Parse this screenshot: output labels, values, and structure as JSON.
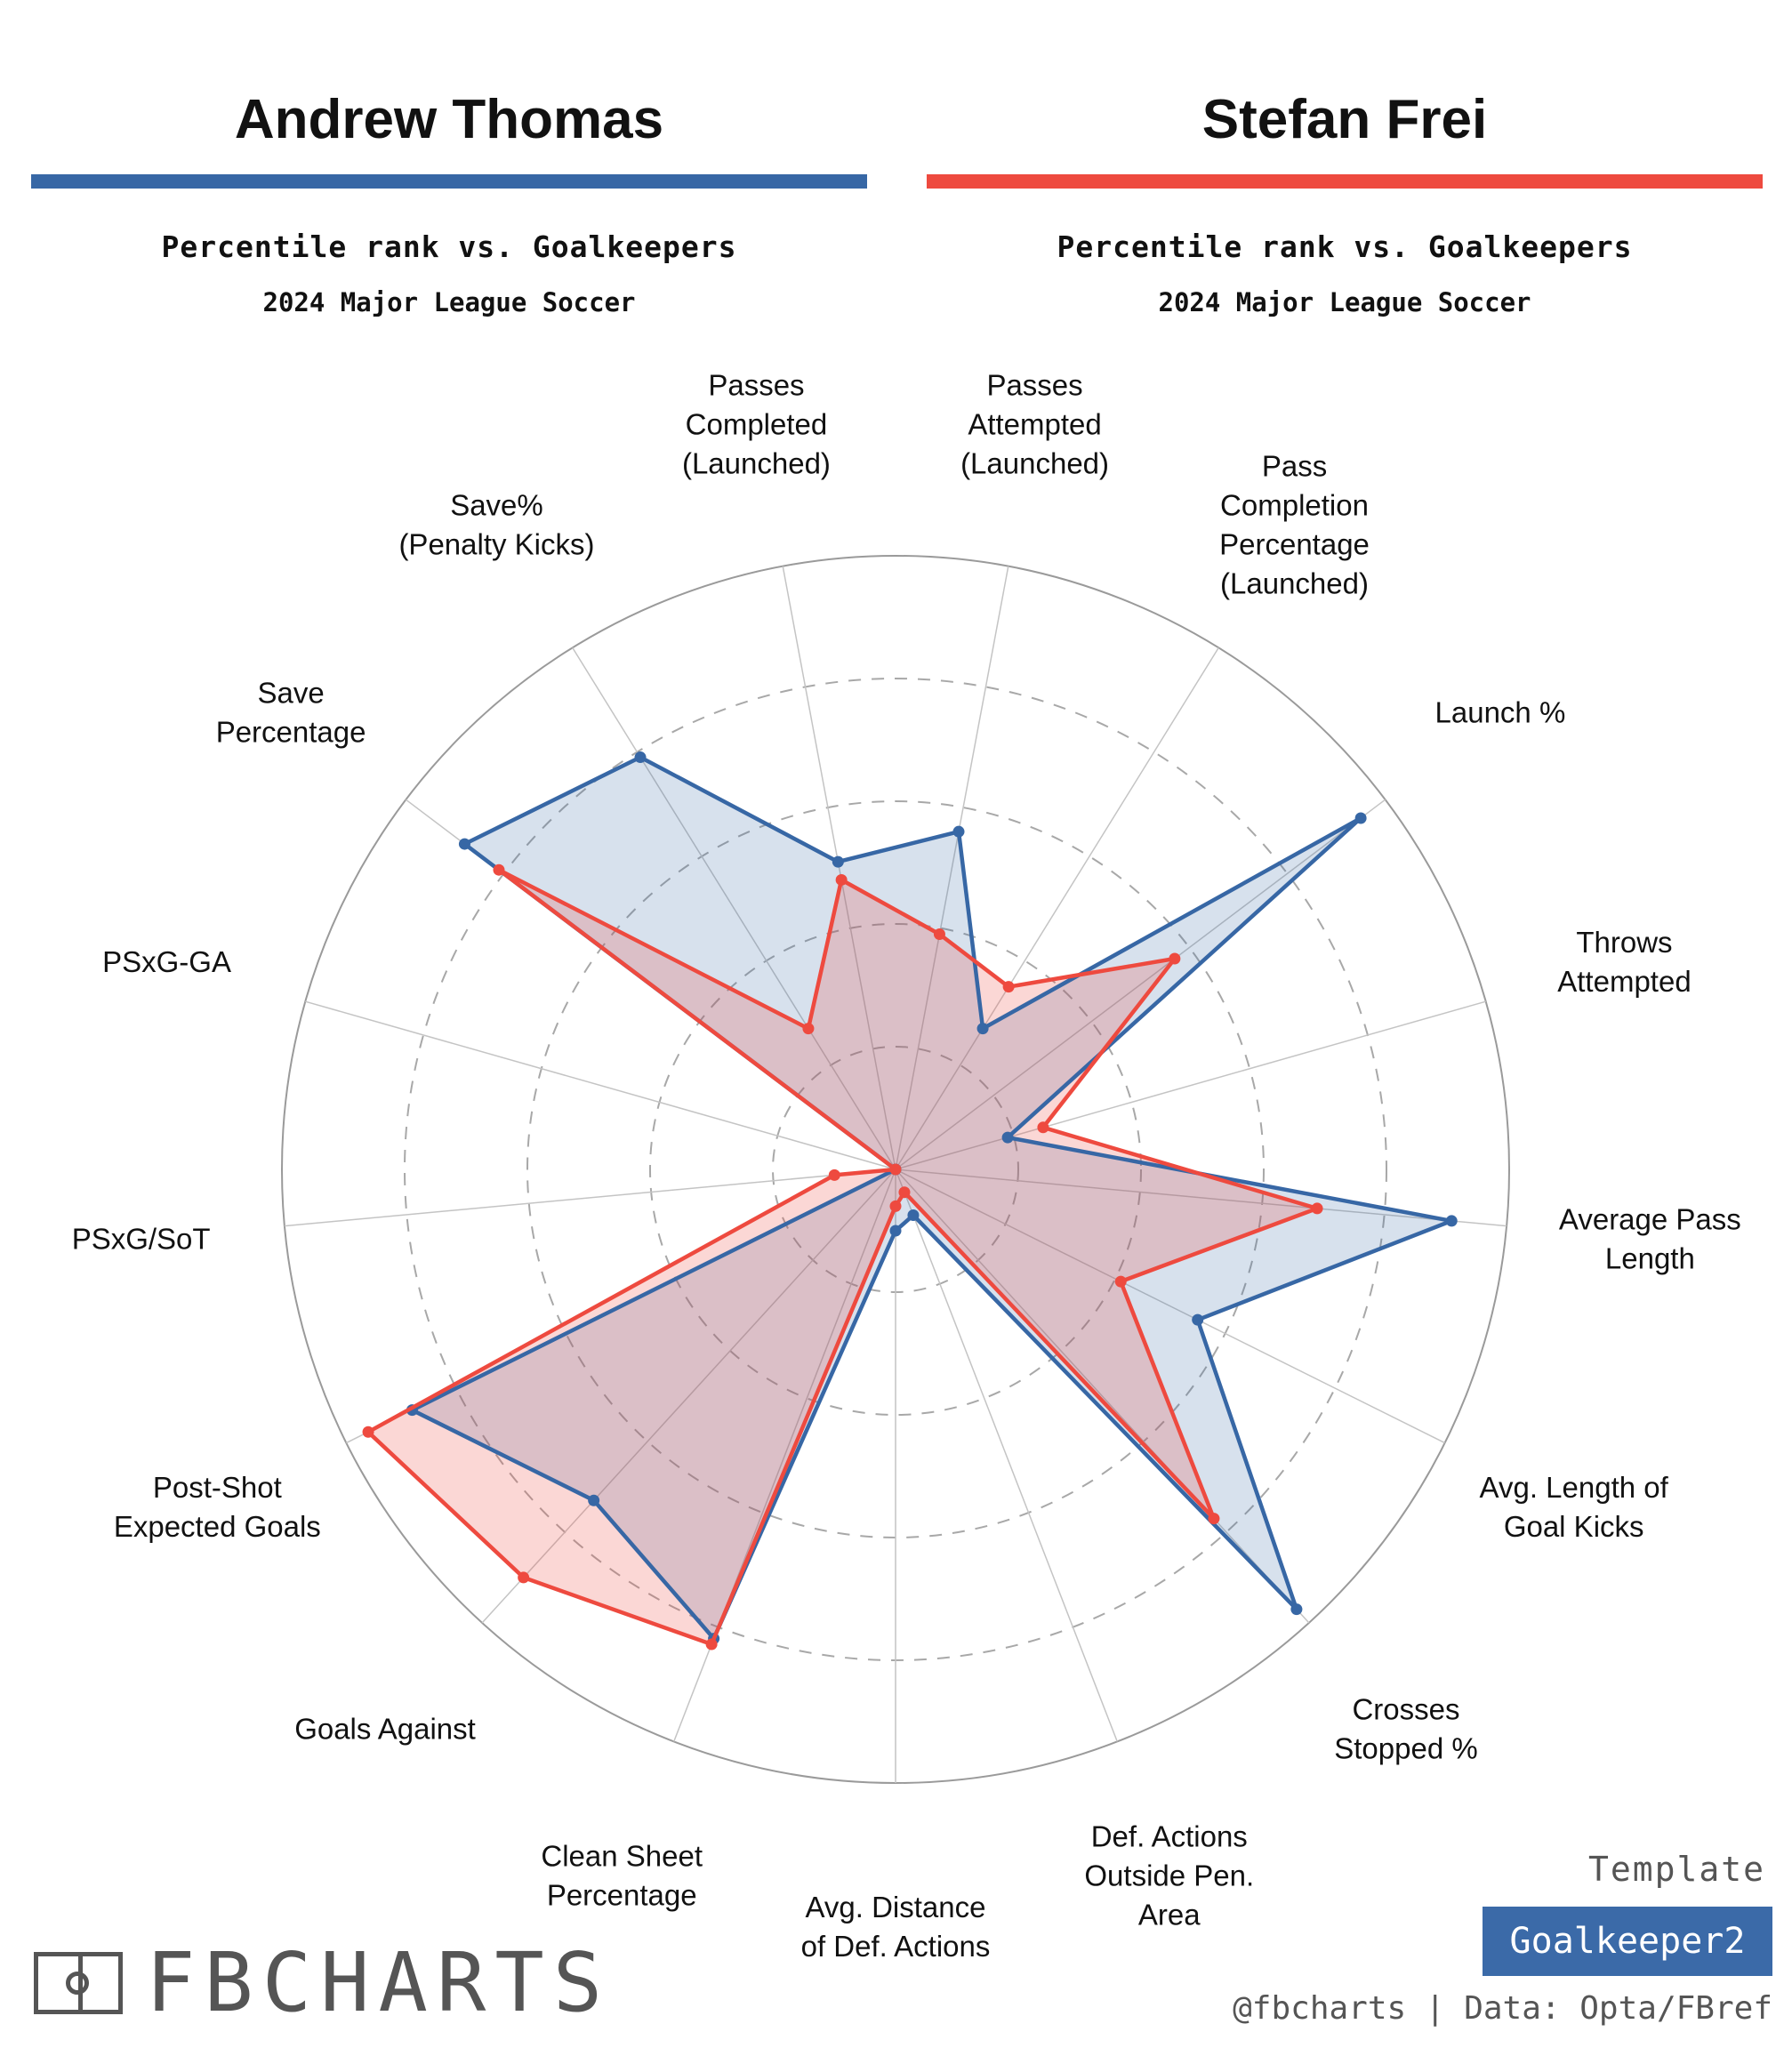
{
  "players": [
    {
      "name": "Andrew Thomas",
      "color": "#3767a5",
      "subtitle": "Percentile rank vs. Goalkeepers",
      "league": "2024 Major League Soccer"
    },
    {
      "name": "Stefan Frei",
      "color": "#ee4a3f",
      "subtitle": "Percentile rank vs. Goalkeepers",
      "league": "2024 Major League Soccer"
    }
  ],
  "chart_data": {
    "type": "radar",
    "range": [
      0,
      100
    ],
    "grid": true,
    "categories": [
      "Save%\n(Penalty Kicks)",
      "Passes\nCompleted\n(Launched)",
      "Passes\nAttempted\n(Launched)",
      "Pass\nCompletion\nPercentage\n(Launched)",
      "Launch %",
      "Throws\nAttempted",
      "Average Pass\nLength",
      "Avg. Length of\nGoal Kicks",
      "Crosses\nStopped %",
      "Def. Actions\nOutside Pen.\nArea",
      "Avg. Distance\nof Def. Actions",
      "Clean Sheet\nPercentage",
      "Goals Against",
      "Post-Shot\nExpected Goals",
      "PSxG/SoT",
      "PSxG-GA",
      "Save\nPercentage"
    ],
    "series": [
      {
        "name": "Andrew Thomas",
        "color": "#3767a5",
        "values": [
          79,
          51,
          56,
          27,
          95,
          19,
          91,
          55,
          97,
          8,
          10,
          82,
          73,
          88,
          0,
          0,
          88
        ]
      },
      {
        "name": "Stefan Frei",
        "color": "#ee4a3f",
        "values": [
          27,
          48,
          39,
          35,
          57,
          25,
          69,
          41,
          77,
          4,
          6,
          83,
          90,
          96,
          10,
          0,
          81
        ]
      }
    ]
  },
  "footer": {
    "logo_text": "FBCHARTS",
    "template_label": "Template",
    "template_name": "Goalkeeper2",
    "credits": "@fbcharts | Data: Opta/FBref"
  }
}
